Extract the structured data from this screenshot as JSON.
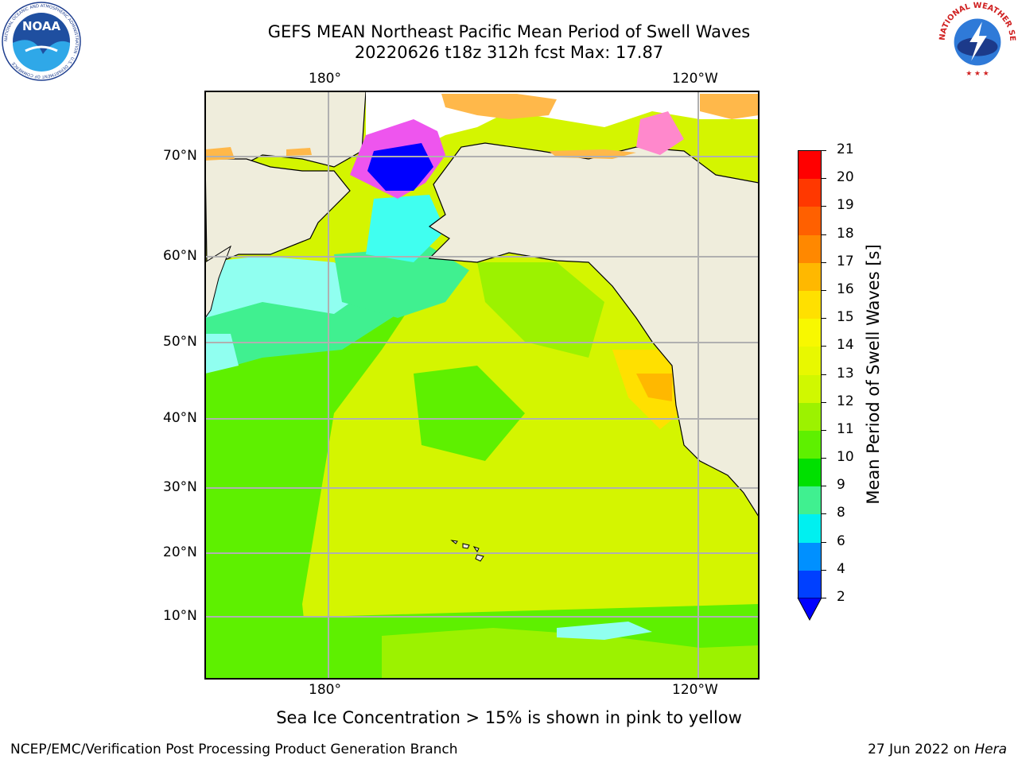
{
  "header": {
    "title_line1": "GEFS MEAN Northeast Pacific Mean Period of Swell Waves",
    "title_line2": "20220626 t18z 312h fcst   Max: 17.87",
    "left_logo_text": "NOAA",
    "left_logo_ring": "NATIONAL OCEANIC AND ATMOSPHERIC ADMINISTRATION · U.S. DEPARTMENT OF COMMERCE",
    "right_logo_ring": "NATIONAL WEATHER SERVICE"
  },
  "map": {
    "lon_labels_top": [
      "180°",
      "120°W"
    ],
    "lon_labels_bottom": [
      "180°",
      "120°W"
    ],
    "lat_labels": [
      "70°N",
      "60°N",
      "50°N",
      "40°N",
      "30°N",
      "20°N",
      "10°N"
    ],
    "colors": {
      "land": "#efeddc",
      "ocean_main": "#d4f500",
      "ocean_green": "#5ef000",
      "grid": "#b0b0b0"
    }
  },
  "colorbar": {
    "label": "Mean Period of Swell Waves [s]",
    "ticks": [
      "21",
      "20",
      "19",
      "18",
      "17",
      "16",
      "15",
      "14",
      "13",
      "12",
      "11",
      "10",
      "9",
      "8",
      "6",
      "4",
      "2"
    ],
    "colors": [
      "#ff0000",
      "#ff3800",
      "#ff6000",
      "#ff8800",
      "#ffb800",
      "#ffe000",
      "#f8f800",
      "#e8f800",
      "#d0f800",
      "#9cf200",
      "#5ef000",
      "#00e000",
      "#40f090",
      "#90fff0",
      "#40fff0",
      "#00f0f0",
      "#0090ff",
      "#0040ff"
    ],
    "under_color": "#0000ff"
  },
  "note": "Sea Ice Concentration > 15% is shown in pink to yellow",
  "footer": {
    "left": "NCEP/EMC/Verification Post Processing Product Generation Branch",
    "right_date": "27 Jun 2022 on ",
    "right_host": "Hera"
  }
}
